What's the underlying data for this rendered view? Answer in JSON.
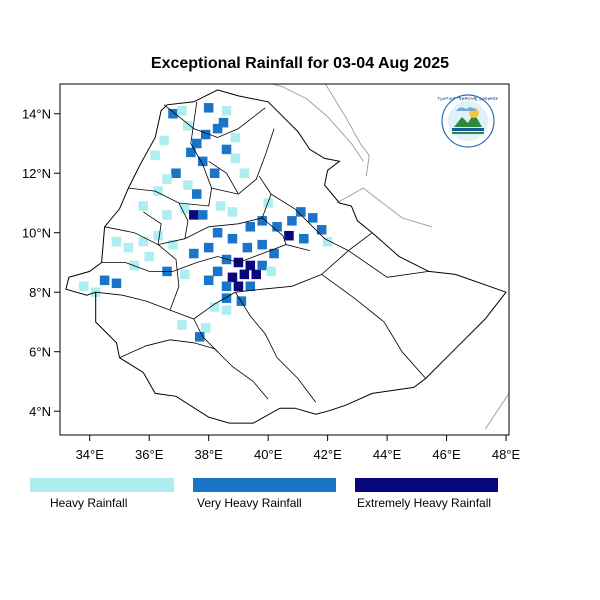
{
  "title": "Exceptional Rainfall for 03-04 Aug 2025",
  "map": {
    "lon_range": [
      33,
      48.1
    ],
    "lat_range": [
      3.2,
      15.0
    ],
    "lon_ticks": [
      {
        "value": 34,
        "label": "34°E"
      },
      {
        "value": 36,
        "label": "36°E"
      },
      {
        "value": 38,
        "label": "38°E"
      },
      {
        "value": 40,
        "label": "40°E"
      },
      {
        "value": 42,
        "label": "42°E"
      },
      {
        "value": 44,
        "label": "44°E"
      },
      {
        "value": 46,
        "label": "46°E"
      },
      {
        "value": 48,
        "label": "48°E"
      }
    ],
    "lat_ticks": [
      {
        "value": 4,
        "label": "4°N"
      },
      {
        "value": 6,
        "label": "6°N"
      },
      {
        "value": 8,
        "label": "8°N"
      },
      {
        "value": 10,
        "label": "10°N"
      },
      {
        "value": 12,
        "label": "12°N"
      },
      {
        "value": 14,
        "label": "14°N"
      }
    ],
    "country_outline": [
      [
        34.2,
        8.0
      ],
      [
        33.9,
        7.9
      ],
      [
        33.2,
        8.1
      ],
      [
        33.3,
        8.5
      ],
      [
        34.0,
        8.7
      ],
      [
        34.4,
        9.0
      ],
      [
        34.5,
        10.2
      ],
      [
        35.0,
        10.8
      ],
      [
        35.3,
        11.5
      ],
      [
        35.7,
        12.3
      ],
      [
        36.2,
        13.2
      ],
      [
        36.4,
        14.1
      ],
      [
        36.6,
        14.3
      ],
      [
        37.5,
        14.4
      ],
      [
        38.3,
        14.8
      ],
      [
        39.0,
        14.6
      ],
      [
        40.0,
        14.4
      ],
      [
        40.4,
        14.0
      ],
      [
        41.0,
        13.4
      ],
      [
        41.4,
        12.8
      ],
      [
        41.9,
        12.5
      ],
      [
        42.4,
        12.4
      ],
      [
        42.0,
        12.1
      ],
      [
        41.9,
        11.6
      ],
      [
        42.4,
        11.0
      ],
      [
        42.8,
        10.9
      ],
      [
        43.0,
        10.4
      ],
      [
        43.5,
        10.0
      ],
      [
        44.4,
        9.2
      ],
      [
        45.4,
        8.7
      ],
      [
        46.3,
        8.6
      ],
      [
        48.0,
        8.0
      ],
      [
        47.3,
        7.1
      ],
      [
        46.3,
        6.1
      ],
      [
        45.3,
        5.1
      ],
      [
        44.9,
        4.8
      ],
      [
        43.5,
        4.6
      ],
      [
        42.6,
        4.2
      ],
      [
        42.0,
        4.0
      ],
      [
        41.6,
        3.9
      ],
      [
        40.9,
        4.1
      ],
      [
        40.4,
        4.1
      ],
      [
        39.5,
        3.6
      ],
      [
        38.7,
        3.6
      ],
      [
        38.0,
        3.8
      ],
      [
        36.9,
        4.5
      ],
      [
        36.2,
        4.6
      ],
      [
        35.8,
        5.3
      ],
      [
        35.0,
        5.8
      ],
      [
        34.9,
        6.3
      ],
      [
        34.2,
        7.0
      ],
      [
        34.2,
        8.0
      ]
    ],
    "region_lines": [
      [
        [
          36.5,
          14.3
        ],
        [
          37.5,
          13.5
        ],
        [
          38.3,
          13.2
        ],
        [
          39.0,
          13.5
        ],
        [
          39.9,
          14.2
        ]
      ],
      [
        [
          37.6,
          14.4
        ],
        [
          37.4,
          13.0
        ],
        [
          37.8,
          12.3
        ],
        [
          38.1,
          11.5
        ],
        [
          39.0,
          11.3
        ],
        [
          39.6,
          11.8
        ],
        [
          39.9,
          12.6
        ],
        [
          40.2,
          13.5
        ]
      ],
      [
        [
          35.3,
          11.5
        ],
        [
          36.2,
          11.4
        ],
        [
          37.0,
          11.0
        ],
        [
          38.0,
          10.9
        ],
        [
          38.1,
          11.5
        ]
      ],
      [
        [
          34.5,
          10.2
        ],
        [
          35.5,
          10.0
        ],
        [
          36.3,
          9.6
        ],
        [
          37.2,
          9.8
        ],
        [
          38.0,
          10.2
        ],
        [
          39.0,
          10.3
        ],
        [
          39.8,
          10.5
        ],
        [
          40.1,
          11.3
        ],
        [
          39.7,
          11.9
        ]
      ],
      [
        [
          40.1,
          11.3
        ],
        [
          40.9,
          10.8
        ],
        [
          41.4,
          10.3
        ],
        [
          41.9,
          9.8
        ],
        [
          42.7,
          9.4
        ],
        [
          43.5,
          10.0
        ]
      ],
      [
        [
          34.4,
          9.0
        ],
        [
          35.2,
          9.0
        ],
        [
          36.0,
          8.7
        ],
        [
          36.8,
          8.7
        ],
        [
          37.6,
          9.0
        ],
        [
          38.3,
          9.2
        ],
        [
          39.0,
          9.0
        ],
        [
          39.8,
          9.3
        ],
        [
          40.6,
          9.6
        ],
        [
          41.4,
          9.4
        ]
      ],
      [
        [
          34.2,
          8.0
        ],
        [
          35.1,
          7.9
        ],
        [
          35.9,
          7.7
        ],
        [
          36.7,
          7.4
        ],
        [
          37.5,
          7.1
        ],
        [
          38.2,
          7.6
        ],
        [
          38.9,
          8.0
        ],
        [
          39.8,
          8.1
        ],
        [
          40.8,
          8.2
        ],
        [
          41.8,
          8.6
        ],
        [
          42.7,
          9.4
        ]
      ],
      [
        [
          35.0,
          5.8
        ],
        [
          35.9,
          6.2
        ],
        [
          36.7,
          6.4
        ],
        [
          37.5,
          6.3
        ],
        [
          38.2,
          6.1
        ],
        [
          38.8,
          5.5
        ],
        [
          39.5,
          5.0
        ],
        [
          40.0,
          4.4
        ]
      ],
      [
        [
          37.5,
          7.1
        ],
        [
          37.8,
          6.5
        ],
        [
          38.3,
          6.0
        ]
      ],
      [
        [
          38.9,
          8.0
        ],
        [
          39.4,
          7.2
        ],
        [
          39.9,
          6.6
        ],
        [
          40.3,
          5.8
        ],
        [
          41.0,
          5.1
        ],
        [
          41.6,
          4.3
        ]
      ],
      [
        [
          36.3,
          9.6
        ],
        [
          36.9,
          9.1
        ],
        [
          37.0,
          8.2
        ],
        [
          36.7,
          7.4
        ]
      ],
      [
        [
          37.2,
          9.8
        ],
        [
          37.3,
          10.4
        ],
        [
          37.0,
          11.0
        ]
      ],
      [
        [
          39.8,
          10.5
        ],
        [
          40.5,
          9.9
        ],
        [
          40.6,
          9.6
        ]
      ],
      [
        [
          41.8,
          8.6
        ],
        [
          42.9,
          7.8
        ],
        [
          43.9,
          7.0
        ],
        [
          44.5,
          6.0
        ],
        [
          45.3,
          5.1
        ]
      ],
      [
        [
          42.7,
          9.4
        ],
        [
          44.0,
          8.5
        ],
        [
          45.4,
          8.7
        ]
      ],
      [
        [
          38.0,
          12.4
        ],
        [
          38.6,
          12.0
        ],
        [
          39.0,
          11.3
        ]
      ],
      [
        [
          35.8,
          10.7
        ],
        [
          36.4,
          10.3
        ],
        [
          36.3,
          9.6
        ]
      ]
    ],
    "neighbor_lines": [
      [
        [
          41.8,
          15.2
        ],
        [
          42.6,
          13.9
        ],
        [
          43.1,
          13.0
        ],
        [
          43.4,
          12.6
        ],
        [
          43.3,
          11.9
        ]
      ],
      [
        [
          39.5,
          15.2
        ],
        [
          40.5,
          14.9
        ],
        [
          41.3,
          14.5
        ],
        [
          42.0,
          13.9
        ],
        [
          42.8,
          13.0
        ],
        [
          43.2,
          12.4
        ]
      ],
      [
        [
          42.3,
          11.0
        ],
        [
          43.2,
          11.5
        ],
        [
          44.5,
          10.5
        ],
        [
          45.5,
          10.2
        ]
      ],
      [
        [
          48.1,
          4.6
        ],
        [
          47.3,
          3.4
        ]
      ]
    ],
    "rain_cells": [
      {
        "lon": 38.5,
        "lat": 13.7,
        "class": 2
      },
      {
        "lon": 38.3,
        "lat": 13.5,
        "class": 2
      },
      {
        "lon": 37.9,
        "lat": 13.3,
        "class": 2
      },
      {
        "lon": 37.6,
        "lat": 13.0,
        "class": 2
      },
      {
        "lon": 37.4,
        "lat": 12.7,
        "class": 2
      },
      {
        "lon": 37.8,
        "lat": 12.4,
        "class": 2
      },
      {
        "lon": 37.3,
        "lat": 13.6,
        "class": 1
      },
      {
        "lon": 38.9,
        "lat": 13.2,
        "class": 1
      },
      {
        "lon": 38.6,
        "lat": 12.8,
        "class": 2
      },
      {
        "lon": 38.9,
        "lat": 12.5,
        "class": 1
      },
      {
        "lon": 36.9,
        "lat": 12.0,
        "class": 2
      },
      {
        "lon": 36.6,
        "lat": 11.8,
        "class": 1
      },
      {
        "lon": 37.3,
        "lat": 11.6,
        "class": 1
      },
      {
        "lon": 37.6,
        "lat": 11.3,
        "class": 2
      },
      {
        "lon": 38.2,
        "lat": 12.0,
        "class": 2
      },
      {
        "lon": 36.3,
        "lat": 11.4,
        "class": 1
      },
      {
        "lon": 35.8,
        "lat": 10.9,
        "class": 1
      },
      {
        "lon": 36.6,
        "lat": 10.6,
        "class": 1
      },
      {
        "lon": 37.2,
        "lat": 10.8,
        "class": 1
      },
      {
        "lon": 37.5,
        "lat": 10.6,
        "class": 3
      },
      {
        "lon": 37.8,
        "lat": 10.6,
        "class": 2
      },
      {
        "lon": 38.4,
        "lat": 10.9,
        "class": 1
      },
      {
        "lon": 38.8,
        "lat": 10.7,
        "class": 1
      },
      {
        "lon": 39.4,
        "lat": 10.2,
        "class": 2
      },
      {
        "lon": 39.8,
        "lat": 10.4,
        "class": 2
      },
      {
        "lon": 40.3,
        "lat": 10.2,
        "class": 2
      },
      {
        "lon": 40.8,
        "lat": 10.4,
        "class": 2
      },
      {
        "lon": 41.1,
        "lat": 10.7,
        "class": 2
      },
      {
        "lon": 41.5,
        "lat": 10.5,
        "class": 2
      },
      {
        "lon": 41.8,
        "lat": 10.1,
        "class": 2
      },
      {
        "lon": 40.7,
        "lat": 9.9,
        "class": 3
      },
      {
        "lon": 41.2,
        "lat": 9.8,
        "class": 2
      },
      {
        "lon": 42.0,
        "lat": 9.7,
        "class": 1
      },
      {
        "lon": 38.3,
        "lat": 10.0,
        "class": 2
      },
      {
        "lon": 38.8,
        "lat": 9.8,
        "class": 2
      },
      {
        "lon": 39.3,
        "lat": 9.5,
        "class": 2
      },
      {
        "lon": 39.8,
        "lat": 9.6,
        "class": 2
      },
      {
        "lon": 40.2,
        "lat": 9.3,
        "class": 2
      },
      {
        "lon": 38.0,
        "lat": 9.5,
        "class": 2
      },
      {
        "lon": 37.5,
        "lat": 9.3,
        "class": 2
      },
      {
        "lon": 38.6,
        "lat": 9.1,
        "class": 2
      },
      {
        "lon": 39.0,
        "lat": 9.0,
        "class": 3
      },
      {
        "lon": 39.4,
        "lat": 8.9,
        "class": 3
      },
      {
        "lon": 39.6,
        "lat": 8.6,
        "class": 3
      },
      {
        "lon": 39.2,
        "lat": 8.6,
        "class": 3
      },
      {
        "lon": 38.8,
        "lat": 8.5,
        "class": 3
      },
      {
        "lon": 39.0,
        "lat": 8.2,
        "class": 3
      },
      {
        "lon": 38.6,
        "lat": 8.2,
        "class": 2
      },
      {
        "lon": 39.4,
        "lat": 8.2,
        "class": 2
      },
      {
        "lon": 39.8,
        "lat": 8.9,
        "class": 2
      },
      {
        "lon": 40.1,
        "lat": 8.7,
        "class": 1
      },
      {
        "lon": 38.3,
        "lat": 8.7,
        "class": 2
      },
      {
        "lon": 38.0,
        "lat": 8.4,
        "class": 2
      },
      {
        "lon": 38.6,
        "lat": 7.8,
        "class": 2
      },
      {
        "lon": 39.1,
        "lat": 7.7,
        "class": 2
      },
      {
        "lon": 38.2,
        "lat": 7.5,
        "class": 1
      },
      {
        "lon": 38.6,
        "lat": 7.4,
        "class": 1
      },
      {
        "lon": 36.8,
        "lat": 9.6,
        "class": 1
      },
      {
        "lon": 36.3,
        "lat": 9.9,
        "class": 1
      },
      {
        "lon": 35.8,
        "lat": 9.7,
        "class": 1
      },
      {
        "lon": 35.3,
        "lat": 9.5,
        "class": 1
      },
      {
        "lon": 34.9,
        "lat": 9.7,
        "class": 1
      },
      {
        "lon": 36.0,
        "lat": 9.2,
        "class": 1
      },
      {
        "lon": 35.5,
        "lat": 8.9,
        "class": 1
      },
      {
        "lon": 34.9,
        "lat": 8.3,
        "class": 2
      },
      {
        "lon": 34.5,
        "lat": 8.4,
        "class": 2
      },
      {
        "lon": 33.8,
        "lat": 8.2,
        "class": 1
      },
      {
        "lon": 34.2,
        "lat": 8.0,
        "class": 1
      },
      {
        "lon": 36.6,
        "lat": 8.7,
        "class": 2
      },
      {
        "lon": 37.2,
        "lat": 8.6,
        "class": 1
      },
      {
        "lon": 37.9,
        "lat": 6.8,
        "class": 1
      },
      {
        "lon": 37.7,
        "lat": 6.5,
        "class": 2
      },
      {
        "lon": 37.1,
        "lat": 6.9,
        "class": 1
      },
      {
        "lon": 36.2,
        "lat": 12.6,
        "class": 1
      },
      {
        "lon": 36.5,
        "lat": 13.1,
        "class": 1
      },
      {
        "lon": 36.8,
        "lat": 14.0,
        "class": 2
      },
      {
        "lon": 37.1,
        "lat": 14.1,
        "class": 1
      },
      {
        "lon": 38.0,
        "lat": 14.2,
        "class": 2
      },
      {
        "lon": 38.6,
        "lat": 14.1,
        "class": 1
      },
      {
        "lon": 39.2,
        "lat": 12.0,
        "class": 1
      },
      {
        "lon": 40.0,
        "lat": 11.0,
        "class": 1
      }
    ]
  },
  "legend": {
    "items": [
      {
        "label": "Heavy Rainfall",
        "color": "#aeeef0"
      },
      {
        "label": "Very Heavy Rainfall",
        "color": "#1a75c8"
      },
      {
        "label": "Extremely Heavy Rainfall",
        "color": "#08087c"
      }
    ]
  },
  "logo": {
    "name": "meteorology-agency-logo-icon",
    "text": "የኢትዮጵያ ሜቲዎሮሎጂ ኢንስቲትዩት"
  }
}
